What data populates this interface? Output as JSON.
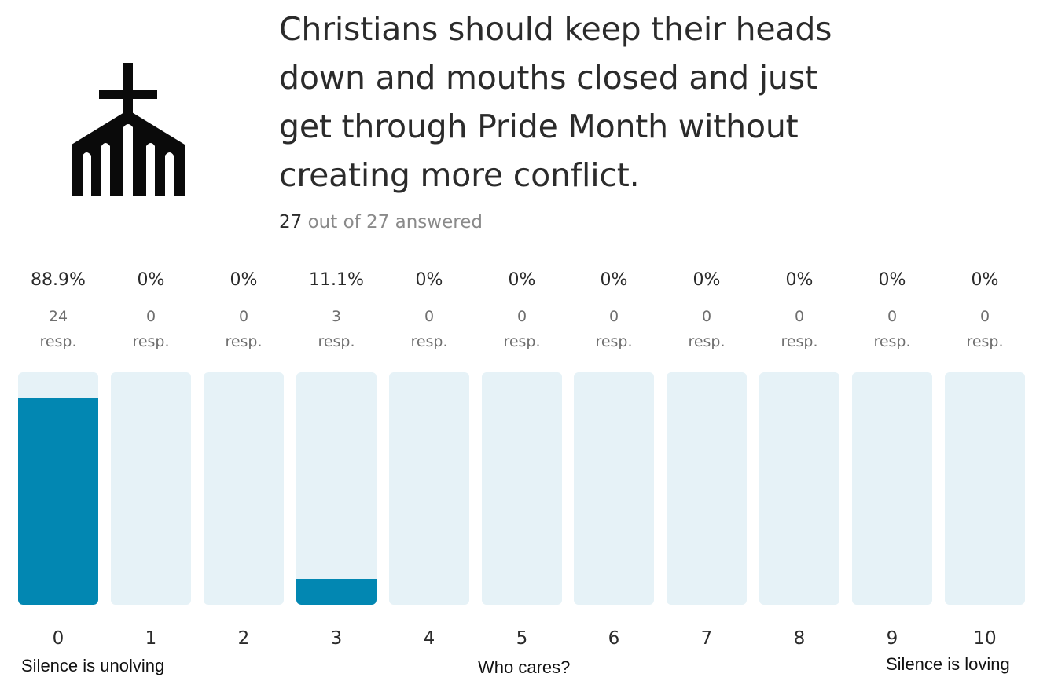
{
  "question": {
    "text": "Christians should keep their heads down and mouths closed and just get through Pride Month without creating more conflict.",
    "answered_count": "27",
    "answered_suffix": " out of 27 answered",
    "icon": "church-icon"
  },
  "colors": {
    "fill": "#0287b2",
    "track": "#e6f2f7",
    "title": "#2b2b2b",
    "muted": "#8a8a8a"
  },
  "chart_data": {
    "type": "bar",
    "categories": [
      "0",
      "1",
      "2",
      "3",
      "4",
      "5",
      "6",
      "7",
      "8",
      "9",
      "10"
    ],
    "values": [
      88.9,
      0,
      0,
      11.1,
      0,
      0,
      0,
      0,
      0,
      0,
      0
    ],
    "percent_labels": [
      "88.9%",
      "0%",
      "0%",
      "11.1%",
      "0%",
      "0%",
      "0%",
      "0%",
      "0%",
      "0%",
      "0%"
    ],
    "responses": [
      "24",
      "0",
      "0",
      "3",
      "0",
      "0",
      "0",
      "0",
      "0",
      "0",
      "0"
    ],
    "response_unit": "resp.",
    "ylim": [
      0,
      100
    ],
    "scale_anchors": {
      "low": "Silence is unolving",
      "middle": "Who cares?",
      "high": "Silence is loving"
    }
  }
}
